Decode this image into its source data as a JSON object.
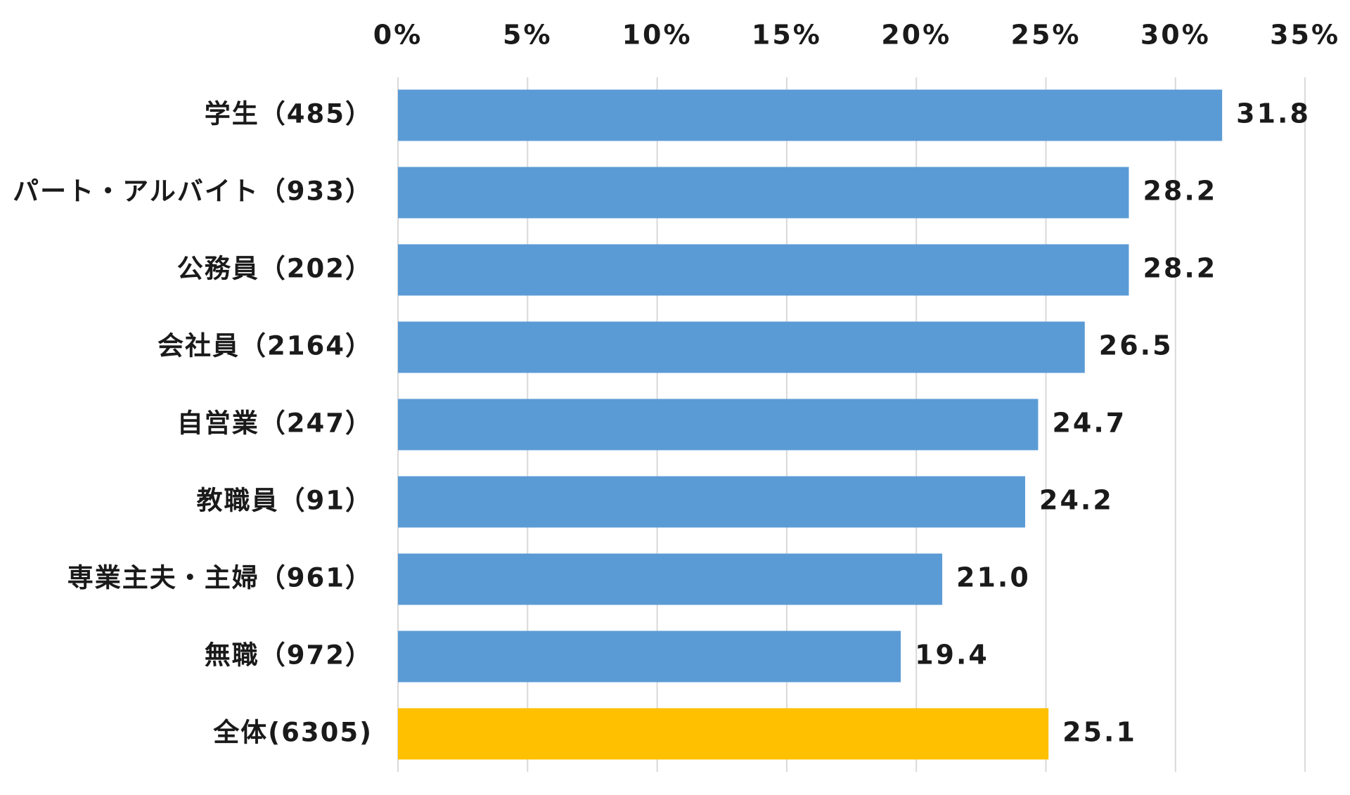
{
  "chart_data": {
    "type": "bar",
    "orientation": "horizontal",
    "categories": [
      "学生（485）",
      "パート・アルバイト（933）",
      "公務員（202）",
      "会社員（2164）",
      "自営業（247）",
      "教職員（91）",
      "専業主夫・主婦（961）",
      "無職（972）",
      "全体(6305)"
    ],
    "values": [
      31.8,
      28.2,
      28.2,
      26.5,
      24.7,
      24.2,
      21.0,
      19.4,
      25.1
    ],
    "value_labels": [
      "31.8",
      "28.2",
      "28.2",
      "26.5",
      "24.7",
      "24.2",
      "21.0",
      "19.4",
      "25.1"
    ],
    "bar_colors": [
      "#5b9bd5",
      "#5b9bd5",
      "#5b9bd5",
      "#5b9bd5",
      "#5b9bd5",
      "#5b9bd5",
      "#5b9bd5",
      "#5b9bd5",
      "#ffc000"
    ],
    "x_ticks": [
      0,
      5,
      10,
      15,
      20,
      25,
      30,
      35
    ],
    "x_tick_labels": [
      "0%",
      "5%",
      "10%",
      "15%",
      "20%",
      "25%",
      "30%",
      "35%"
    ],
    "xlim": [
      0,
      35
    ],
    "axis_position": "top",
    "grid": true,
    "title": "",
    "xlabel": "",
    "ylabel": ""
  }
}
